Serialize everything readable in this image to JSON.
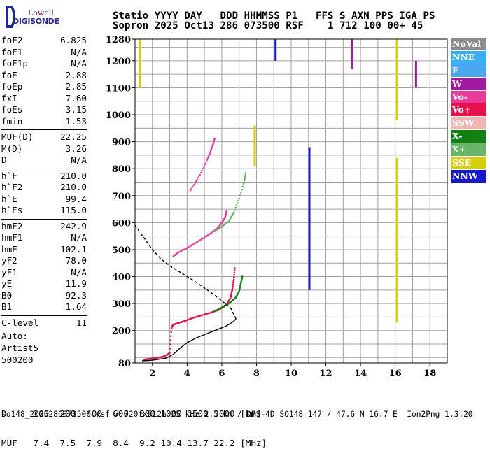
{
  "logo": {
    "brand": "Lowell",
    "product": "DIGISONDE"
  },
  "header": {
    "line1": "Statio YYYY DAY   DDD HHMMSS P1   FFS S AXN PPS IGA PS",
    "line2": "Sopron 2025 Oct13 286 073500 RSF    1 712 100 00+ 45"
  },
  "params": {
    "group1": [
      {
        "name": "foF2",
        "value": "6.825"
      },
      {
        "name": "foF1",
        "value": "N/A"
      },
      {
        "name": "foF1p",
        "value": "N/A"
      },
      {
        "name": "foE",
        "value": "2.88"
      },
      {
        "name": "foEp",
        "value": "2.85"
      },
      {
        "name": "fxI",
        "value": "7.60"
      },
      {
        "name": "foEs",
        "value": "3.15"
      },
      {
        "name": "fmin",
        "value": "1.53"
      }
    ],
    "group2": [
      {
        "name": "MUF(D)",
        "value": "22.25"
      },
      {
        "name": "M(D)",
        "value": "3.26"
      },
      {
        "name": "D",
        "value": "N/A"
      }
    ],
    "group3": [
      {
        "name": "h`F",
        "value": "210.0"
      },
      {
        "name": "h`F2",
        "value": "210.0"
      },
      {
        "name": "h`E",
        "value": "99.4"
      },
      {
        "name": "h`Es",
        "value": "115.0"
      }
    ],
    "group4": [
      {
        "name": "hmF2",
        "value": "242.9"
      },
      {
        "name": "hmF1",
        "value": "N/A"
      },
      {
        "name": "hmE",
        "value": "102.1"
      },
      {
        "name": "yF2",
        "value": "78.0"
      },
      {
        "name": "yF1",
        "value": "N/A"
      },
      {
        "name": "yE",
        "value": "11.9"
      },
      {
        "name": "B0",
        "value": "92.3"
      },
      {
        "name": "B1",
        "value": "1.64"
      }
    ],
    "group5": [
      {
        "name": "C-level",
        "value": "11"
      }
    ]
  },
  "auto": {
    "line1": "Auto:",
    "line2": "Artist5",
    "line3": "500200"
  },
  "legend": [
    {
      "label": "NoVal",
      "color": "#8c8c8c"
    },
    {
      "label": "NNE",
      "color": "#3ab0f0"
    },
    {
      "label": "E",
      "color": "#4aa8ee"
    },
    {
      "label": "W",
      "color": "#a01aa0"
    },
    {
      "label": "Vo-",
      "color": "#e83a9a"
    },
    {
      "label": "Vo+",
      "color": "#e8104a"
    },
    {
      "label": "SSW",
      "color": "#f4b4b4"
    },
    {
      "label": "X-",
      "color": "#138013"
    },
    {
      "label": "X+",
      "color": "#6ab46a"
    },
    {
      "label": "SSE",
      "color": "#d4d010"
    },
    {
      "label": "NNW",
      "color": "#1818cc"
    }
  ],
  "footer": {
    "d_row": "D     100  200  400  600  800 1000 1500 3000 [km]",
    "muf_row": "MUF   7.4  7.5  7.9  8.4  9.2 10.4 13.7 22.2 [MHz]",
    "info": "so148_2025286073500.rsf / 720fx512h 25 kHz 2.5 km / DPS-4D SO148 147 / 47.6 N 16.7 E  Ion2Png 1.3.20"
  },
  "chart_data": {
    "type": "scatter",
    "xlim": [
      1,
      19
    ],
    "ylim": [
      80,
      1280
    ],
    "x_ticks": [
      2,
      4,
      6,
      8,
      10,
      12,
      14,
      16,
      18
    ],
    "y_ticks": [
      80,
      200,
      300,
      400,
      500,
      600,
      700,
      800,
      900,
      1000,
      1100,
      1200,
      1280
    ],
    "grid": true,
    "series": [
      {
        "color": "#e8104a",
        "points": [
          [
            1.5,
            92
          ],
          [
            1.8,
            95
          ],
          [
            2.2,
            98
          ],
          [
            2.6,
            103
          ],
          [
            2.9,
            112
          ],
          [
            3.0,
            118
          ],
          [
            3.1,
            210
          ],
          [
            3.2,
            222
          ],
          [
            3.5,
            228
          ],
          [
            3.9,
            236
          ],
          [
            4.3,
            246
          ],
          [
            4.8,
            256
          ],
          [
            5.3,
            265
          ],
          [
            5.8,
            276
          ],
          [
            6.1,
            288
          ],
          [
            6.3,
            300
          ],
          [
            6.5,
            320
          ],
          [
            6.6,
            350
          ],
          [
            6.7,
            390
          ],
          [
            6.75,
            440
          ]
        ]
      },
      {
        "color": "#138013",
        "points": [
          [
            5.6,
            272
          ],
          [
            5.9,
            282
          ],
          [
            6.2,
            292
          ],
          [
            6.5,
            305
          ],
          [
            6.8,
            322
          ],
          [
            7.0,
            345
          ],
          [
            7.1,
            375
          ],
          [
            7.2,
            405
          ]
        ]
      },
      {
        "color": "#e83a9a",
        "points": [
          [
            3.2,
            475
          ],
          [
            3.5,
            490
          ],
          [
            4.0,
            506
          ],
          [
            4.5,
            525
          ],
          [
            5.0,
            545
          ],
          [
            5.4,
            562
          ],
          [
            5.8,
            582
          ],
          [
            6.0,
            600
          ],
          [
            6.2,
            620
          ],
          [
            6.3,
            648
          ]
        ]
      },
      {
        "color": "#6ab46a",
        "points": [
          [
            5.6,
            568
          ],
          [
            6.0,
            585
          ],
          [
            6.4,
            605
          ],
          [
            6.7,
            638
          ],
          [
            7.0,
            690
          ],
          [
            7.3,
            755
          ],
          [
            7.4,
            790
          ]
        ]
      },
      {
        "color": "#e83a9a",
        "points": [
          [
            4.2,
            720
          ],
          [
            4.6,
            760
          ],
          [
            5.0,
            810
          ],
          [
            5.3,
            855
          ],
          [
            5.5,
            890
          ],
          [
            5.6,
            915
          ]
        ]
      }
    ],
    "virtual_height_trace": [
      [
        1.4,
        88
      ],
      [
        1.8,
        89
      ],
      [
        2.2,
        92
      ],
      [
        2.8,
        98
      ],
      [
        3.2,
        112
      ],
      [
        3.6,
        135
      ],
      [
        4.0,
        155
      ],
      [
        4.5,
        172
      ],
      [
        5.0,
        185
      ],
      [
        5.6,
        200
      ],
      [
        6.2,
        215
      ],
      [
        6.6,
        230
      ],
      [
        6.825,
        243
      ]
    ],
    "true_height_profile": [
      [
        1.0,
        590
      ],
      [
        1.5,
        545
      ],
      [
        2.0,
        500
      ],
      [
        2.5,
        465
      ],
      [
        3.0,
        440
      ],
      [
        3.5,
        420
      ],
      [
        4.0,
        400
      ],
      [
        4.5,
        380
      ],
      [
        5.0,
        358
      ],
      [
        5.5,
        335
      ],
      [
        6.0,
        310
      ],
      [
        6.5,
        285
      ],
      [
        6.825,
        243
      ]
    ],
    "vertical_traces": [
      {
        "color": "#1818cc",
        "x": 11.05,
        "y": [
          350,
          880
        ]
      },
      {
        "color": "#d4d010",
        "x": 16.1,
        "y": [
          230,
          840
        ]
      },
      {
        "color": "#d4d010",
        "x": 16.1,
        "y": [
          980,
          1280
        ]
      },
      {
        "color": "#a01aa0",
        "x": 13.5,
        "y": [
          1170,
          1280
        ]
      },
      {
        "color": "#a01aa0",
        "x": 17.2,
        "y": [
          1100,
          1200
        ]
      },
      {
        "color": "#d4d010",
        "x": 7.9,
        "y": [
          810,
          960
        ]
      },
      {
        "color": "#d4d010",
        "x": 1.3,
        "y": [
          1100,
          1280
        ]
      },
      {
        "color": "#1818cc",
        "x": 9.1,
        "y": [
          1200,
          1280
        ]
      }
    ]
  }
}
